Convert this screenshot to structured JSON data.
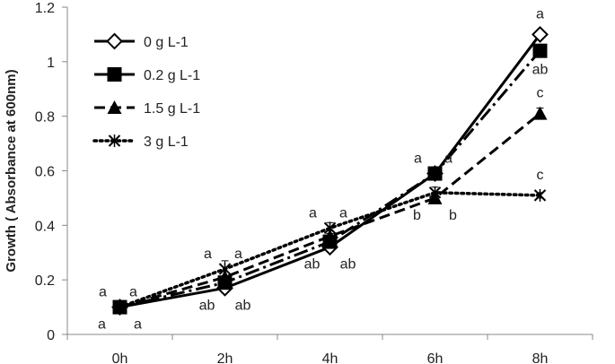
{
  "chart_data": {
    "type": "line",
    "title": "",
    "xlabel": "",
    "ylabel": "Growth ( Absorbance at 600nm)",
    "ylim": [
      0,
      1.2
    ],
    "yticks": [
      "0",
      "0.2",
      "0.4",
      "0.6",
      "0.8",
      "1",
      "1.2"
    ],
    "categories": [
      "0h",
      "2h",
      "4h",
      "6h",
      "8h"
    ],
    "grid": false,
    "legend_position": "top-left",
    "series": [
      {
        "name": "0 g L-1",
        "values": [
          0.1,
          0.17,
          0.32,
          0.59,
          1.1
        ],
        "errors": [
          0.01,
          0.01,
          0.01,
          0.01,
          0.01
        ],
        "marker": "diamond-open",
        "dash": "solid"
      },
      {
        "name": "0.2 g L-1",
        "values": [
          0.1,
          0.19,
          0.34,
          0.59,
          1.04
        ],
        "errors": [
          0.01,
          0.02,
          0.02,
          0.02,
          0.02
        ],
        "marker": "square",
        "dash": "dashdot"
      },
      {
        "name": "1.5 g L-1",
        "values": [
          0.1,
          0.21,
          0.36,
          0.5,
          0.81
        ],
        "errors": [
          0.01,
          0.02,
          0.02,
          0.02,
          0.02
        ],
        "marker": "triangle",
        "dash": "longdash"
      },
      {
        "name": "3 g L-1",
        "values": [
          0.1,
          0.24,
          0.39,
          0.52,
          0.51
        ],
        "errors": [
          0.01,
          0.03,
          0.02,
          0.02,
          0.01
        ],
        "marker": "star-open",
        "dash": "dotted"
      }
    ],
    "annotations": [
      {
        "text": "a",
        "x": "0h",
        "y": 0.1,
        "pos": "upper-left"
      },
      {
        "text": "a",
        "x": "0h",
        "y": 0.1,
        "pos": "upper-right"
      },
      {
        "text": "a",
        "x": "0h",
        "y": 0.1,
        "pos": "lower-left"
      },
      {
        "text": "a",
        "x": "0h",
        "y": 0.1,
        "pos": "lower-right"
      },
      {
        "text": "a",
        "x": "2h",
        "y": 0.24,
        "pos": "upper-left"
      },
      {
        "text": "a",
        "x": "2h",
        "y": 0.24,
        "pos": "upper-right"
      },
      {
        "text": "ab",
        "x": "2h",
        "y": 0.17,
        "pos": "lower-left"
      },
      {
        "text": "ab",
        "x": "2h",
        "y": 0.17,
        "pos": "lower-right"
      },
      {
        "text": "a",
        "x": "4h",
        "y": 0.39,
        "pos": "upper-left"
      },
      {
        "text": "a",
        "x": "4h",
        "y": 0.39,
        "pos": "upper-right"
      },
      {
        "text": "ab",
        "x": "4h",
        "y": 0.32,
        "pos": "lower-left"
      },
      {
        "text": "ab",
        "x": "4h",
        "y": 0.32,
        "pos": "lower-right"
      },
      {
        "text": "a",
        "x": "6h",
        "y": 0.59,
        "pos": "upper-left"
      },
      {
        "text": "a",
        "x": "6h",
        "y": 0.59,
        "pos": "upper-right"
      },
      {
        "text": "b",
        "x": "6h",
        "y": 0.5,
        "pos": "lower-left"
      },
      {
        "text": "b",
        "x": "6h",
        "y": 0.5,
        "pos": "lower-right"
      },
      {
        "text": "a",
        "x": "8h",
        "y": 1.1,
        "pos": "above"
      },
      {
        "text": "ab",
        "x": "8h",
        "y": 1.04,
        "pos": "below"
      },
      {
        "text": "c",
        "x": "8h",
        "y": 0.81,
        "pos": "above"
      },
      {
        "text": "c",
        "x": "8h",
        "y": 0.51,
        "pos": "above"
      }
    ]
  }
}
